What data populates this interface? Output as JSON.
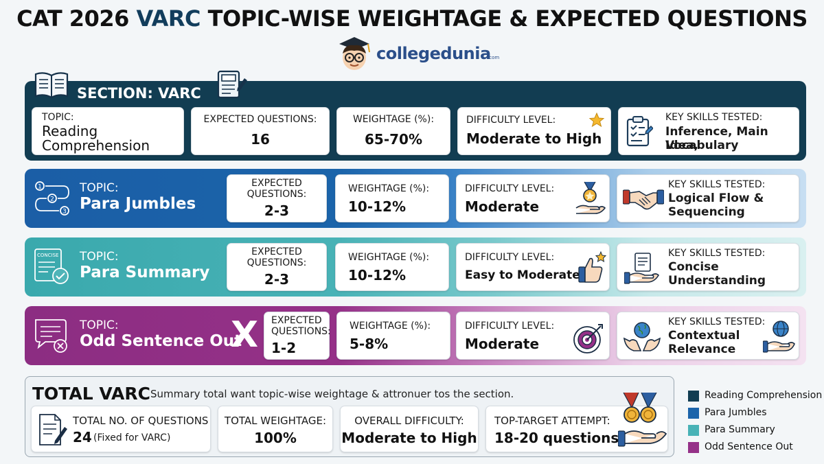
{
  "title": {
    "prefix": "CAT 2026 ",
    "accent": "VARC",
    "suffix": " TOPIC-WISE WEIGHTAGE & EXPECTED QUESTIONS"
  },
  "brand": {
    "name": "collegedunia",
    "tld": ".com"
  },
  "section": {
    "label": "SECTION: VARC",
    "topic_label": "TOPIC:",
    "topic_name_line1": "Reading",
    "topic_name_line2": "Comprehension",
    "expected_label": "EXPECTED QUESTIONS:",
    "expected_value": "16",
    "weightage_label": "WEIGHTAGE (%):",
    "weightage_value": "65-70%",
    "difficulty_label": "DIFFICULTY LEVEL:",
    "difficulty_value": "Moderate to High",
    "skills_label": "KEY SKILLS TESTED:",
    "skills_line1": "Inference, Main Idea,",
    "skills_line2": "Vocabulary"
  },
  "topics": [
    {
      "topic_label": "TOPIC:",
      "topic_name": "Para Jumbles",
      "expected_line1": "EXPECTED",
      "expected_line2": "QUESTIONS:",
      "expected_value": "2-3",
      "weightage_label": "WEIGHTAGE (%):",
      "weightage_value": "10-12%",
      "difficulty_label": "DIFFICULTY LEVEL:",
      "difficulty_value": "Moderate",
      "skills_label": "KEY SKILLS TESTED:",
      "skills_line1": "Logical Flow &",
      "skills_line2": "Sequencing"
    },
    {
      "topic_label": "TOPIC:",
      "topic_name": "Para Summary",
      "icon_text": "CONCISE",
      "expected_line1": "EXPECTED",
      "expected_line2": "QUESTIONS:",
      "expected_value": "2-3",
      "weightage_label": "WEIGHTAGE (%):",
      "weightage_value": "10-12%",
      "difficulty_label": "DIFFICULTY LEVEL:",
      "difficulty_value": "Easy to Moderate",
      "skills_label": "KEY SKILLS TESTED:",
      "skills_line1": "Concise",
      "skills_line2": "Understanding"
    },
    {
      "topic_label": "TOPIC:",
      "topic_name": "Odd Sentence Out",
      "mark": "X",
      "expected_line1": "EXPECTED",
      "expected_line2": "QUESTIONS:",
      "expected_value": "1-2",
      "weightage_label": "WEIGHTAGE (%):",
      "weightage_value": "5-8%",
      "difficulty_label": "DIFFICULTY LEVEL:",
      "difficulty_value": "Moderate",
      "skills_label": "KEY SKILLS TESTED:",
      "skills_line1": "Contextual",
      "skills_line2": "Relevance"
    }
  ],
  "total": {
    "heading": "TOTAL VARC",
    "subtitle": "Summary total want topic-wise weightage & attronuer tos the section.",
    "questions_label": "TOTAL NO. OF QUESTIONS",
    "questions_value": "24",
    "questions_note": "(Fixed for VARC)",
    "weightage_label": "TOTAL WEIGHTAGE:",
    "weightage_value": "100%",
    "difficulty_label": "OVERALL DIFFICULTY:",
    "difficulty_value": "Moderate to High",
    "attempt_label": "TOP-TARGET ATTEMPT:",
    "attempt_value": "18-20 questions"
  },
  "legend": [
    {
      "label": "Reading Comprehension",
      "color": "#123d52"
    },
    {
      "label": "Para Jumbles",
      "color": "#1b64aa"
    },
    {
      "label": "Para Summary",
      "color": "#48b2b6"
    },
    {
      "label": "Odd Sentence Out",
      "color": "#953188"
    }
  ],
  "icons": {
    "book": "open-book-icon",
    "notebook": "notebook-pen-icon",
    "star": "star-icon",
    "clipboard": "clipboard-checklist-icon",
    "sequence": "sequence-steps-icon",
    "medal": "medal-hand-icon",
    "handshake": "handshake-icon",
    "concise": "concise-document-icon",
    "thumbs": "thumbs-up-icon",
    "doc_hand": "document-hand-icon",
    "odd": "odd-sentence-icon",
    "target": "target-icon",
    "globe_hands": "globe-hands-icon",
    "globe_hand": "globe-hand-icon",
    "doc_pen": "document-pen-icon",
    "medals_hand": "medals-hand-icon"
  }
}
